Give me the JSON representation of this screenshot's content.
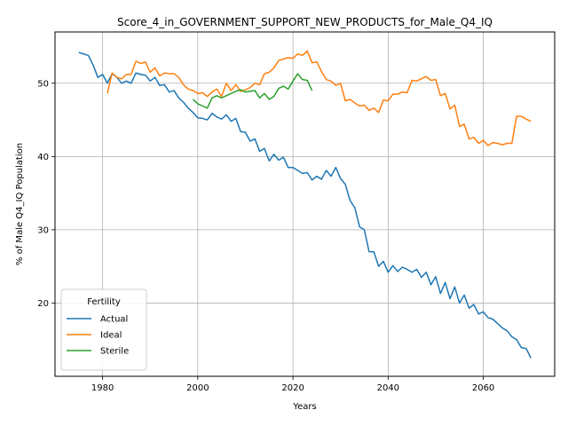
{
  "chart_data": {
    "type": "line",
    "title": "Score_4_in_GOVERNMENT_SUPPORT_NEW_PRODUCTS_for_Male_Q4_IQ",
    "xlabel": "Years",
    "ylabel": "% of Male Q4_IQ Population",
    "xlim": [
      1970,
      2075
    ],
    "ylim": [
      10,
      57
    ],
    "xticks": [
      1980,
      2000,
      2020,
      2040,
      2060
    ],
    "yticks": [
      20,
      30,
      40,
      50
    ],
    "grid": true,
    "legend": {
      "title": "Fertility",
      "placement": "lower-left"
    },
    "series": [
      {
        "name": "Actual",
        "color": "#1f77b4",
        "x": [
          1975,
          1976,
          1977,
          1978,
          1979,
          1980,
          1981,
          1982,
          1983,
          1984,
          1985,
          1986,
          1987,
          1988,
          1989,
          1990,
          1991,
          1992,
          1993,
          1994,
          1995,
          1996,
          1997,
          1998,
          1999,
          2000,
          2001,
          2002,
          2003,
          2004,
          2005,
          2006,
          2007,
          2008,
          2009,
          2010,
          2011,
          2012,
          2013,
          2014,
          2015,
          2016,
          2017,
          2018,
          2019,
          2020,
          2021,
          2022,
          2023,
          2024,
          2025,
          2026,
          2027,
          2028,
          2029,
          2030,
          2031,
          2032,
          2033,
          2034,
          2035,
          2036,
          2037,
          2038,
          2039,
          2040,
          2041,
          2042,
          2043,
          2044,
          2045,
          2046,
          2047,
          2048,
          2049,
          2050,
          2051,
          2052,
          2053,
          2054,
          2055,
          2056,
          2057,
          2058,
          2059,
          2060,
          2061,
          2062,
          2063,
          2064,
          2065,
          2066,
          2067,
          2068,
          2069,
          2070
        ],
        "y": [
          54.2,
          54.0,
          53.8,
          52.5,
          50.8,
          51.2,
          50.0,
          51.3,
          50.8,
          50.0,
          50.3,
          50.0,
          51.4,
          51.2,
          51.1,
          50.3,
          50.8,
          49.7,
          49.8,
          48.8,
          49.0,
          48.0,
          47.4,
          46.6,
          46.0,
          45.3,
          45.2,
          45.0,
          45.9,
          45.4,
          45.1,
          45.7,
          44.8,
          45.2,
          43.4,
          43.3,
          42.1,
          42.4,
          40.7,
          41.1,
          39.4,
          40.3,
          39.5,
          39.9,
          38.5,
          38.5,
          38.1,
          37.7,
          37.8,
          36.8,
          37.3,
          36.9,
          38.1,
          37.3,
          38.5,
          37.0,
          36.2,
          34.0,
          33.0,
          30.4,
          30.0,
          27.0,
          27.0,
          25.0,
          25.7,
          24.2,
          25.1,
          24.3,
          24.9,
          24.6,
          24.2,
          24.6,
          23.5,
          24.2,
          22.5,
          23.6,
          21.3,
          22.8,
          20.6,
          22.2,
          20.0,
          21.1,
          19.3,
          19.8,
          18.5,
          18.8,
          18.0,
          17.8,
          17.2,
          16.6,
          16.2,
          15.4,
          15.0,
          13.9,
          13.8,
          12.5
        ]
      },
      {
        "name": "Ideal",
        "color": "#ff7f0e",
        "x": [
          1981,
          1982,
          1983,
          1984,
          1985,
          1986,
          1987,
          1988,
          1989,
          1990,
          1991,
          1992,
          1993,
          1994,
          1995,
          1996,
          1997,
          1998,
          1999,
          2000,
          2001,
          2002,
          2003,
          2004,
          2005,
          2006,
          2007,
          2008,
          2009,
          2010,
          2011,
          2012,
          2013,
          2014,
          2015,
          2016,
          2017,
          2018,
          2019,
          2020,
          2021,
          2022,
          2023,
          2024,
          2025,
          2026,
          2027,
          2028,
          2029,
          2030,
          2031,
          2032,
          2033,
          2034,
          2035,
          2036,
          2037,
          2038,
          2039,
          2040,
          2041,
          2042,
          2043,
          2044,
          2045,
          2046,
          2047,
          2048,
          2049,
          2050,
          2051,
          2052,
          2053,
          2054,
          2055,
          2056,
          2057,
          2058,
          2059,
          2060,
          2061,
          2062,
          2063,
          2064,
          2065,
          2066,
          2067,
          2068,
          2069,
          2070
        ],
        "y": [
          48.6,
          51.4,
          50.8,
          50.6,
          51.2,
          51.2,
          53.0,
          52.7,
          52.9,
          51.5,
          52.1,
          51.0,
          51.4,
          51.3,
          51.3,
          50.8,
          49.8,
          49.2,
          49.0,
          48.6,
          48.7,
          48.2,
          48.8,
          49.2,
          48.2,
          50.0,
          49.0,
          49.8,
          48.9,
          49.1,
          49.4,
          50.0,
          49.8,
          51.3,
          51.5,
          52.1,
          53.1,
          53.3,
          53.5,
          53.4,
          54.0,
          53.8,
          54.4,
          52.8,
          52.9,
          51.6,
          50.5,
          50.3,
          49.7,
          50.0,
          47.6,
          47.8,
          47.3,
          46.9,
          47.0,
          46.3,
          46.6,
          46.0,
          47.7,
          47.6,
          48.5,
          48.5,
          48.8,
          48.7,
          50.4,
          50.3,
          50.6,
          50.9,
          50.4,
          50.5,
          48.3,
          48.6,
          46.5,
          47.0,
          44.1,
          44.4,
          42.4,
          42.6,
          41.8,
          42.2,
          41.5,
          41.9,
          41.8,
          41.6,
          41.8,
          41.8,
          45.5,
          45.5,
          45.1,
          44.8
        ]
      },
      {
        "name": "Sterile",
        "color": "#2ca02c",
        "x": [
          1999,
          2000,
          2001,
          2002,
          2003,
          2004,
          2005,
          2006,
          2007,
          2008,
          2009,
          2010,
          2011,
          2012,
          2013,
          2014,
          2015,
          2016,
          2017,
          2018,
          2019,
          2020,
          2021,
          2022,
          2023,
          2024
        ],
        "y": [
          47.8,
          47.2,
          46.9,
          46.6,
          48.0,
          48.3,
          48.0,
          48.3,
          48.6,
          48.9,
          49.1,
          48.8,
          48.9,
          49.0,
          48.0,
          48.6,
          47.8,
          48.2,
          49.3,
          49.6,
          49.2,
          50.3,
          51.3,
          50.5,
          50.4,
          49.0
        ]
      }
    ]
  }
}
